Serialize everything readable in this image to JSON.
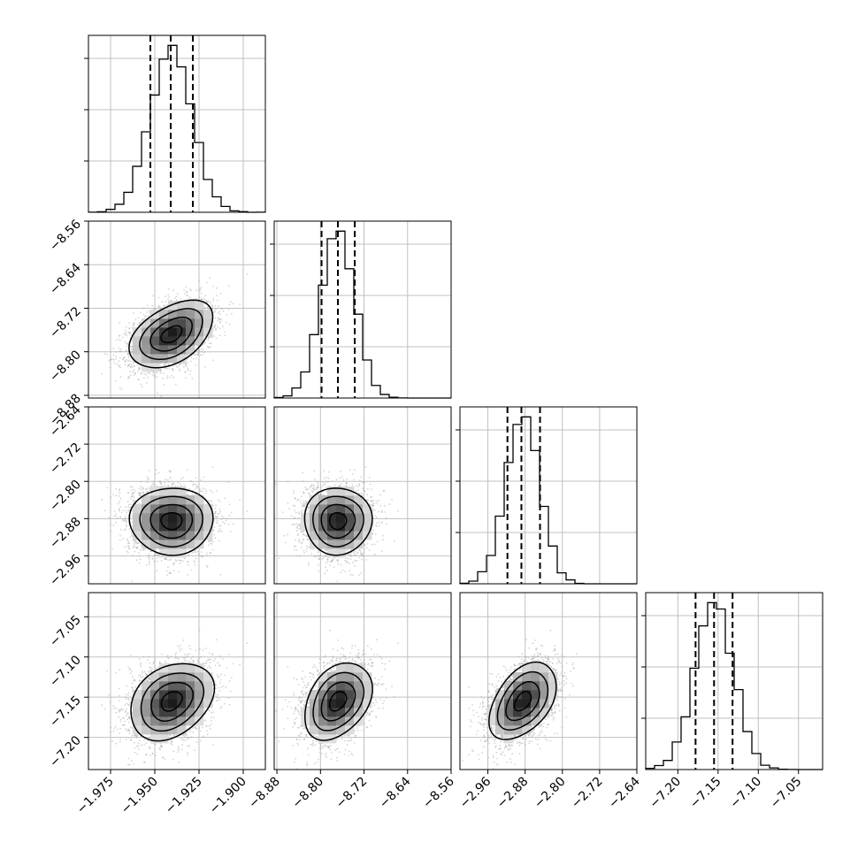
{
  "chart_data": {
    "type": "corner",
    "parameters": 4,
    "histogram_quantiles": [
      0.16,
      0.5,
      0.84
    ],
    "contour_levels": 4,
    "grid": true,
    "colors": {
      "line": "#000000",
      "grid": "#c0c0c0",
      "points": "#a0a0a0",
      "background": "#ffffff"
    },
    "axes": [
      {
        "range": [
          -1.9875,
          -1.8875
        ],
        "ticks": [
          -1.975,
          -1.95,
          -1.925,
          -1.9
        ],
        "tick_labels": [
          "−1.975",
          "−1.950",
          "−1.925",
          "−1.900"
        ],
        "quantile_values": [
          -1.9525,
          -1.941,
          -1.9285
        ],
        "distribution": {
          "mean": -1.9405,
          "sd": 0.0118
        }
      },
      {
        "range": [
          -8.885,
          -8.56
        ],
        "ticks": [
          -8.88,
          -8.8,
          -8.72,
          -8.64,
          -8.56
        ],
        "tick_labels": [
          "−8.88",
          "−8.80",
          "−8.72",
          "−8.64",
          "−8.56"
        ],
        "quantile_values": [
          -8.798,
          -8.768,
          -8.737
        ],
        "distribution": {
          "mean": -8.768,
          "sd": 0.031
        }
      },
      {
        "range": [
          -3.02,
          -2.64
        ],
        "ticks": [
          -2.96,
          -2.88,
          -2.8,
          -2.72,
          -2.64
        ],
        "tick_labels": [
          "−2.96",
          "−2.88",
          "−2.80",
          "−2.72",
          "−2.64"
        ],
        "quantile_values": [
          -2.918,
          -2.888,
          -2.848
        ],
        "distribution": {
          "mean": -2.885,
          "sd": 0.036
        }
      },
      {
        "range": [
          -7.24,
          -7.02
        ],
        "ticks": [
          -7.2,
          -7.15,
          -7.1,
          -7.05
        ],
        "tick_labels": [
          "−7.20",
          "−7.15",
          "−7.10",
          "−7.05"
        ],
        "quantile_values": [
          -7.178,
          -7.155,
          -7.132
        ],
        "distribution": {
          "mean": -7.155,
          "sd": 0.024
        }
      }
    ],
    "correlations": [
      {
        "pair": [
          1,
          0
        ],
        "rho": 0.45
      },
      {
        "pair": [
          2,
          0
        ],
        "rho": 0.0
      },
      {
        "pair": [
          2,
          1
        ],
        "rho": 0.0
      },
      {
        "pair": [
          3,
          0
        ],
        "rho": 0.3
      },
      {
        "pair": [
          3,
          1
        ],
        "rho": 0.35
      },
      {
        "pair": [
          3,
          2
        ],
        "rho": 0.45
      }
    ]
  }
}
